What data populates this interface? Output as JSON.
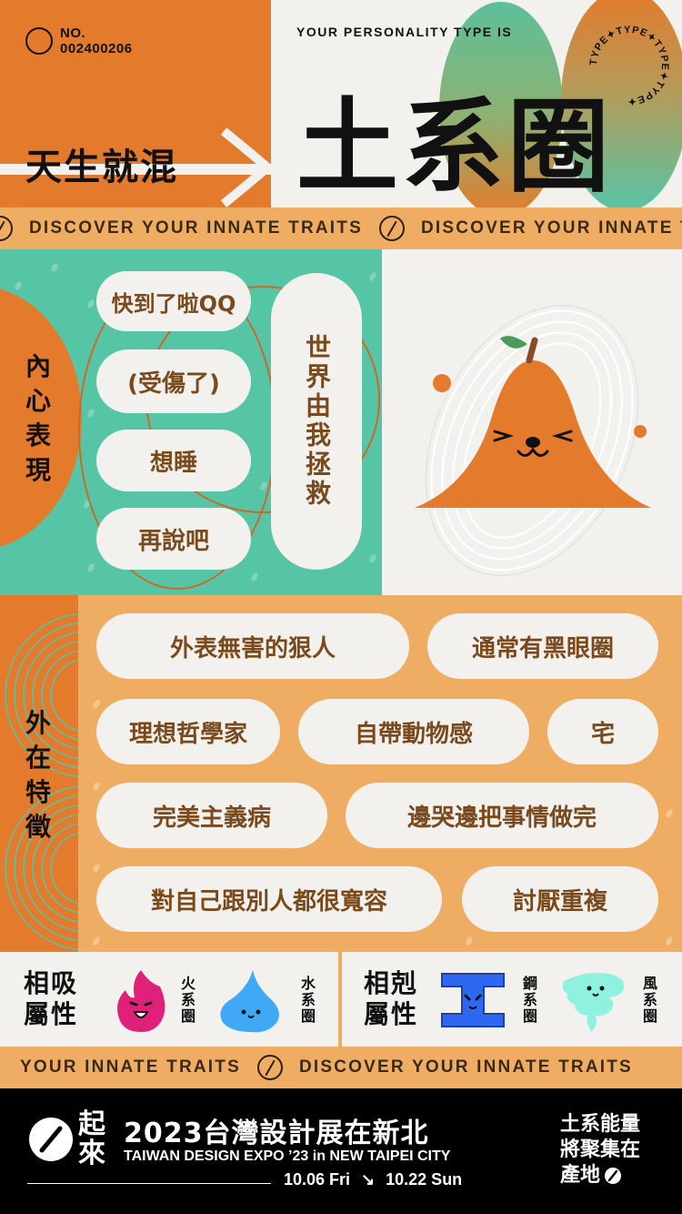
{
  "header": {
    "no_label": "NO.",
    "no_value": "002400206",
    "tagline": "天生就混",
    "your_type_label": "YOUR PERSONALITY TYPE IS",
    "type_name": "土系圈",
    "badge_text": "TYPE✦TYPE✦TYPE✦TYPE✦"
  },
  "marquee_top": {
    "text": "DISCOVER YOUR INNATE TRAITS"
  },
  "inner": {
    "label": "內心表現",
    "pills": [
      "快到了啦QQ",
      "(受傷了)",
      "想睡",
      "再說吧"
    ],
    "tall_pill": "世界由我拯救"
  },
  "outer": {
    "label": "外在特徵",
    "pills": [
      "外表無害的狠人",
      "通常有黑眼圈",
      "理想哲學家",
      "自帶動物感",
      "宅",
      "完美主義病",
      "邊哭邊把事情做完",
      "對自己跟別人都很寬容",
      "討厭重複"
    ]
  },
  "attributes": {
    "attract_title": "相吸屬性",
    "repel_title": "相剋屬性",
    "fire": "火系圈",
    "water": "水系圈",
    "steel": "鋼系圈",
    "wind": "風系圈"
  },
  "marquee_bottom": {
    "text1": "YOUR INNATE TRAITS",
    "text2": "DISCOVER YOUR INNATE TRAITS"
  },
  "footer": {
    "logo_chars": "起來",
    "title": "2023台灣設計展在新北",
    "subtitle": "TAIWAN DESIGN EXPO ’23 in NEW TAIPEI CITY",
    "date_start": "10.06 Fri",
    "arrow": "↘",
    "date_end": "10.22 Sun",
    "right_line1": "土系能量",
    "right_line2": "將聚集在",
    "right_line3": "產地"
  },
  "colors": {
    "orange": "#e47a2c",
    "light_orange": "#efad63",
    "teal": "#56c5a6",
    "cream": "#f2f1ee",
    "brown_text": "#7a4a1d"
  }
}
